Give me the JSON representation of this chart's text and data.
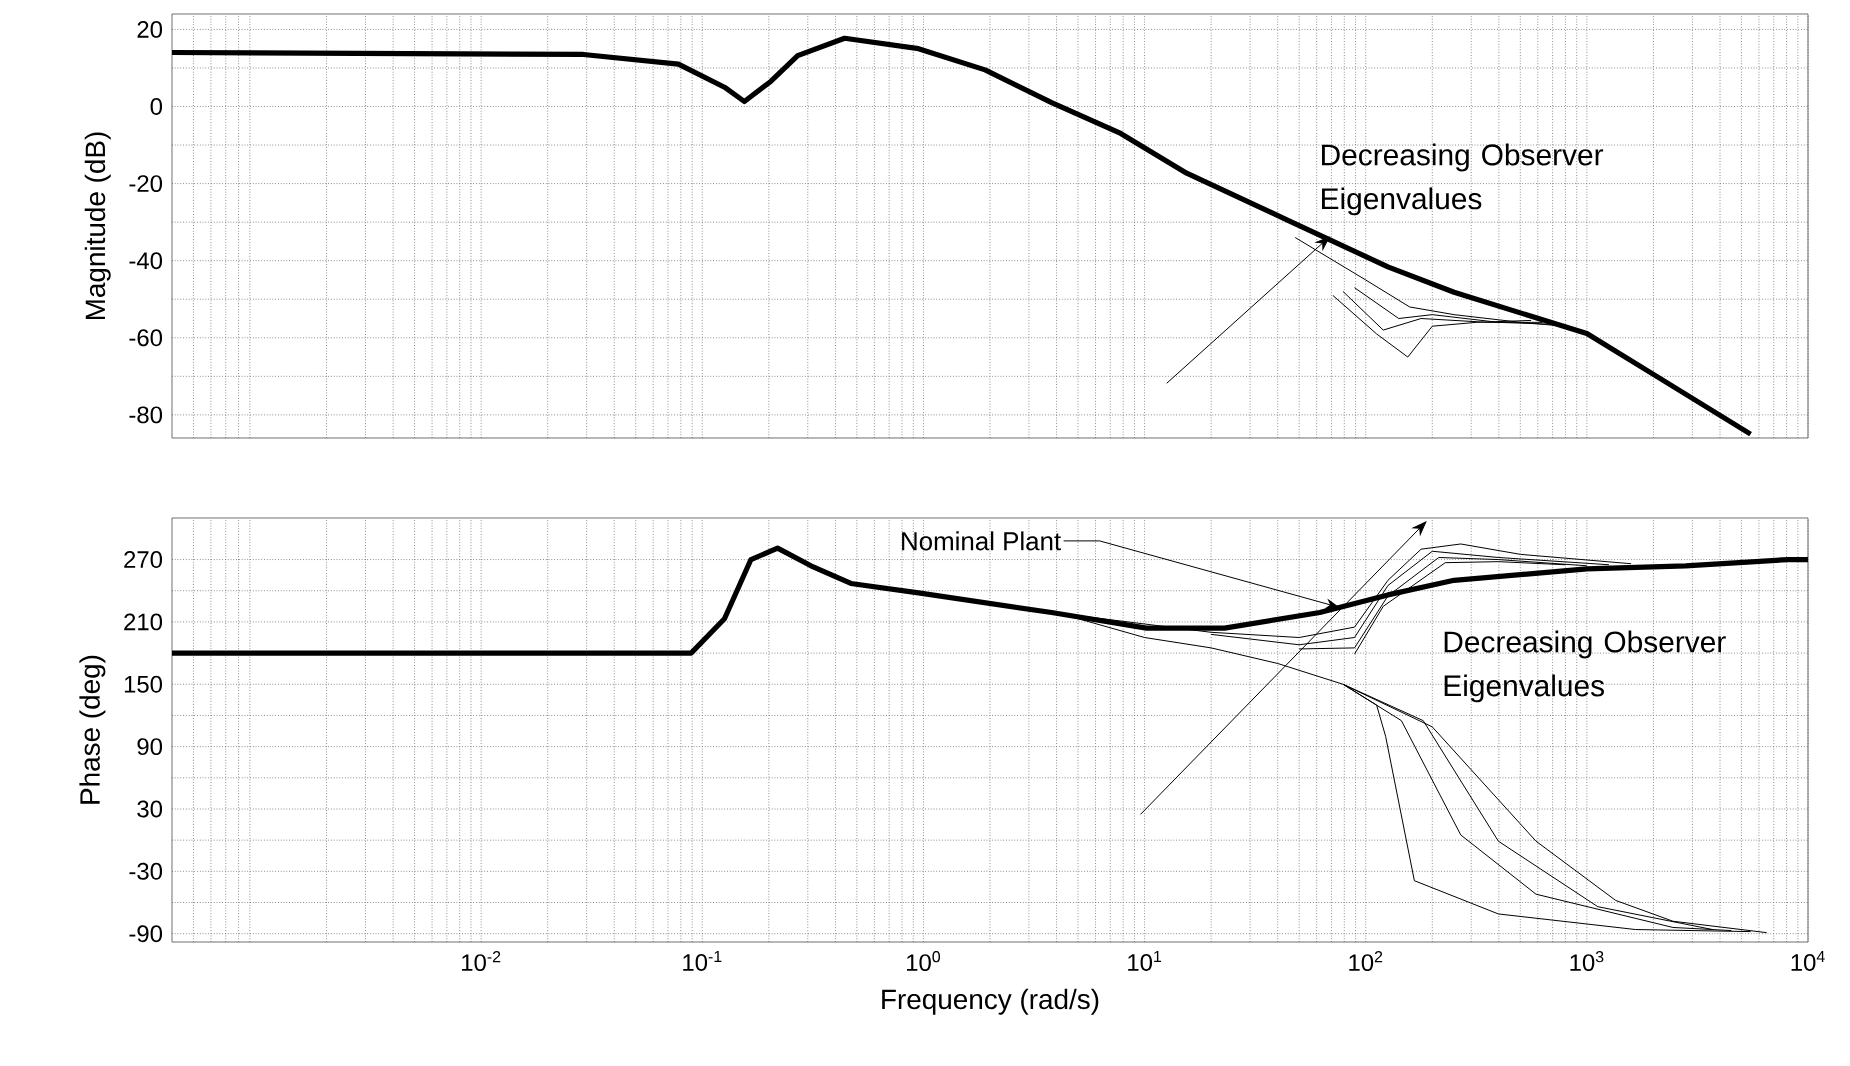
{
  "chart_data": [
    {
      "type": "line",
      "ylabel": "Magnitude (dB)",
      "log": "x",
      "grid": true,
      "tick_labels": "y",
      "xlim": [
        0.0004,
        10000
      ],
      "ylim": [
        -86,
        24
      ],
      "yticks": [
        -80,
        -60,
        -40,
        -20,
        0,
        20
      ],
      "xticks": [
        0.01,
        0.1,
        1,
        10,
        100,
        1000,
        10000
      ],
      "annotations": [
        "Decreasing Observer Eigenvalues"
      ],
      "series": [
        {
          "color": "#000000",
          "x": [
            0.0004,
            0.029,
            0.078,
            0.126,
            0.155,
            0.204,
            0.27,
            0.44,
            0.95,
            1.9,
            3.8,
            7.8,
            15.5,
            44,
            126,
            251,
            1000,
            2000,
            5500
          ],
          "values": [
            14,
            13.5,
            11,
            5,
            1.3,
            6.5,
            13.2,
            17.7,
            15,
            9.5,
            1,
            -7,
            -17.3,
            -29.4,
            -41.6,
            -48.2,
            -58.9,
            -69.5,
            -85
          ]
        },
        {
          "color": "#000000",
          "x": [
            48,
            100,
            158,
            251,
            501,
            794
          ],
          "values": [
            -34,
            -45,
            -52,
            -54,
            -56,
            -57
          ]
        },
        {
          "color": "#000000",
          "x": [
            89,
            141,
            200,
            398,
            700
          ],
          "values": [
            -47,
            -55,
            -54,
            -56,
            -56.5
          ]
        },
        {
          "color": "#000000",
          "x": [
            79,
            120,
            178,
            355,
            630
          ],
          "values": [
            -48,
            -58,
            -55,
            -56,
            -56
          ]
        },
        {
          "color": "#000000",
          "x": [
            71,
            112,
            155,
            200,
            316,
            560
          ],
          "values": [
            -49,
            -59,
            -65,
            -57,
            -56,
            -55.5
          ]
        }
      ]
    },
    {
      "type": "line",
      "ylabel": "Phase (deg)",
      "xlabel": "Frequency (rad/s)",
      "log": "x",
      "grid": true,
      "xlim": [
        0.0004,
        10000
      ],
      "ylim": [
        -98,
        310
      ],
      "yticks": [
        -90,
        -30,
        30,
        90,
        150,
        210,
        270
      ],
      "xticks": [
        {
          "value": 0.01,
          "label": "10$^{-2}$"
        },
        {
          "value": 0.1,
          "label": "10$^{-1}$"
        },
        {
          "value": 1,
          "label": "10$^{0}$"
        },
        {
          "value": 10,
          "label": "10$^{1}$"
        },
        {
          "value": 100,
          "label": "10$^{2}$"
        },
        {
          "value": 1000,
          "label": "10$^{3}$"
        },
        {
          "value": 10000,
          "label": "10$^{4}$"
        }
      ],
      "annotations": [
        {
          "text": "Nominal Plant",
          "x": 76,
          "y": 224
        },
        "Decreasing Observer Eigenvalues"
      ],
      "series": [
        {
          "color": "#000000",
          "x": [
            0.0004,
            0.089,
            0.126,
            0.166,
            0.219,
            0.31,
            0.47,
            0.95,
            3.8,
            10.2,
            23,
            62,
            126,
            251,
            1000,
            2800,
            8100,
            10000
          ],
          "values": [
            180,
            180,
            213,
            270,
            281,
            264,
            247,
            238,
            219,
            204,
            204,
            219,
            236,
            250,
            261,
            264,
            270,
            270
          ]
        },
        {
          "color": "#000000",
          "x": [
            5,
            20,
            50,
            89,
            126,
            178,
            269,
            501,
            1585
          ],
          "values": [
            216,
            200,
            195,
            205,
            250,
            280,
            285,
            275,
            266
          ]
        },
        {
          "color": "#000000",
          "x": [
            20,
            50,
            89,
            126,
            200,
            398,
            1259
          ],
          "values": [
            198,
            188,
            195,
            245,
            278,
            272,
            265
          ]
        },
        {
          "color": "#000000",
          "x": [
            50,
            89,
            126,
            214,
            398,
            1000
          ],
          "values": [
            184,
            185,
            235,
            272,
            270,
            264
          ]
        },
        {
          "color": "#000000",
          "x": [
            89,
            120,
            229,
            398,
            800
          ],
          "values": [
            179,
            225,
            267,
            268,
            265
          ]
        },
        {
          "color": "#000000",
          "x": [
            4,
            10,
            20,
            40,
            79,
            112,
            123,
            166,
            398,
            1660,
            5500
          ],
          "values": [
            219,
            195,
            185,
            170,
            150,
            130,
            100,
            -39,
            -71,
            -86,
            -88
          ]
        },
        {
          "color": "#000000",
          "x": [
            79,
            145,
            269,
            589,
            2450,
            4500
          ],
          "values": [
            150,
            115,
            5,
            -52,
            -84,
            -87
          ]
        },
        {
          "color": "#000000",
          "x": [
            79,
            182,
            398,
            1120,
            3700
          ],
          "values": [
            150,
            115,
            -1,
            -64,
            -86
          ]
        },
        {
          "color": "#000000",
          "x": [
            79,
            200,
            589,
            1350,
            2450,
            6500
          ],
          "values": [
            150,
            109,
            -1,
            -58,
            -78,
            -89
          ]
        }
      ]
    }
  ]
}
